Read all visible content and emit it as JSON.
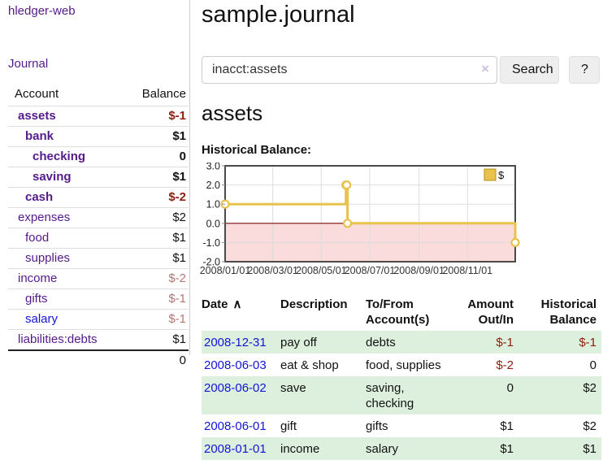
{
  "app": {
    "brand": "hledger-web"
  },
  "sidebar": {
    "nav": [
      {
        "label": "Journal"
      }
    ],
    "accounts_table": {
      "headers": {
        "account": "Account",
        "balance": "Balance"
      },
      "rows": [
        {
          "name": "assets",
          "balance": "$-1",
          "indent": 12,
          "bold": true,
          "value_class": "neg-strong"
        },
        {
          "name": "bank",
          "balance": "$1",
          "indent": 21,
          "bold": true,
          "value_class": ""
        },
        {
          "name": "checking",
          "balance": "0",
          "indent": 30,
          "bold": true,
          "value_class": ""
        },
        {
          "name": "saving",
          "balance": "$1",
          "indent": 30,
          "bold": true,
          "value_class": ""
        },
        {
          "name": "cash",
          "balance": "$-2",
          "indent": 21,
          "bold": true,
          "value_class": "neg-strong"
        },
        {
          "name": "expenses",
          "balance": "$2",
          "indent": 12,
          "bold": false,
          "value_class": ""
        },
        {
          "name": "food",
          "balance": "$1",
          "indent": 21,
          "bold": false,
          "value_class": ""
        },
        {
          "name": "supplies",
          "balance": "$1",
          "indent": 21,
          "bold": false,
          "value_class": ""
        },
        {
          "name": "income",
          "balance": "$-2",
          "indent": 12,
          "bold": false,
          "value_class": "neg-faded"
        },
        {
          "name": "gifts",
          "balance": "$-1",
          "indent": 21,
          "bold": false,
          "value_class": "neg-faded"
        },
        {
          "name": "salary",
          "balance": "$-1",
          "indent": 21,
          "bold": false,
          "value_class": "neg-faded",
          "link_color": "blue"
        },
        {
          "name": "liabilities:debts",
          "balance": "$1",
          "indent": 12,
          "bold": false,
          "value_class": ""
        }
      ],
      "total": "0"
    }
  },
  "main": {
    "title": "sample.journal",
    "search": {
      "value": "inacct:assets",
      "clear_icon": "×",
      "button_label": "Search",
      "help_label": "?"
    },
    "account_heading": "assets",
    "chart_label": "Historical Balance:",
    "register_table": {
      "headers": {
        "date": "Date",
        "sort_indicator": "∧",
        "description": "Description",
        "accounts": "To/From Account(s)",
        "amount": "Amount Out/In",
        "balance": "Historical Balance"
      },
      "rows": [
        {
          "date": "2008-12-31",
          "description": "pay off",
          "accounts": "debts",
          "amount": "$-1",
          "amount_neg": true,
          "balance": "$-1",
          "balance_neg": true,
          "shaded": true
        },
        {
          "date": "2008-06-03",
          "description": "eat & shop",
          "accounts": "food, supplies",
          "amount": "$-2",
          "amount_neg": true,
          "balance": "0",
          "balance_neg": false,
          "shaded": false
        },
        {
          "date": "2008-06-02",
          "description": "save",
          "accounts": "saving, checking",
          "amount": "0",
          "amount_neg": false,
          "balance": "$2",
          "balance_neg": false,
          "shaded": true
        },
        {
          "date": "2008-06-01",
          "description": "gift",
          "accounts": "gifts",
          "amount": "$1",
          "amount_neg": false,
          "balance": "$2",
          "balance_neg": false,
          "shaded": false
        },
        {
          "date": "2008-01-01",
          "description": "income",
          "accounts": "salary",
          "amount": "$1",
          "amount_neg": false,
          "balance": "$1",
          "balance_neg": false,
          "shaded": true
        }
      ]
    }
  },
  "chart_data": {
    "type": "line",
    "step": true,
    "title": "Historical Balance:",
    "series": [
      {
        "name": "$",
        "color": "#e8c24a",
        "points": [
          {
            "x": "2008-01-01",
            "y": 1
          },
          {
            "x": "2008-06-01",
            "y": 2
          },
          {
            "x": "2008-06-02",
            "y": 2
          },
          {
            "x": "2008-06-03",
            "y": 0
          },
          {
            "x": "2008-12-31",
            "y": -1
          }
        ]
      }
    ],
    "x_range": [
      "2008-01-01",
      "2008-12-31"
    ],
    "ylim": [
      -2,
      3
    ],
    "y_ticks": [
      3.0,
      2.0,
      1.0,
      0.0,
      -1.0,
      -2.0
    ],
    "x_ticks": [
      "2008-01-01",
      "2008-03-01",
      "2008-05-01",
      "2008-07-01",
      "2008-09-01",
      "2008-11-01"
    ],
    "x_tick_labels": [
      "2008/01/01",
      "2008/03/01",
      "2008/05/01",
      "2008/07/01",
      "2008/09/01",
      "2008/11/01"
    ],
    "grid": true,
    "legend": {
      "label": "$",
      "position": "top-right"
    },
    "negative_region_color": "#fadcdc",
    "zero_line_color": "#7b0c0c",
    "border_color": "#4a4a4a",
    "marker_fill": "#ffffff"
  }
}
